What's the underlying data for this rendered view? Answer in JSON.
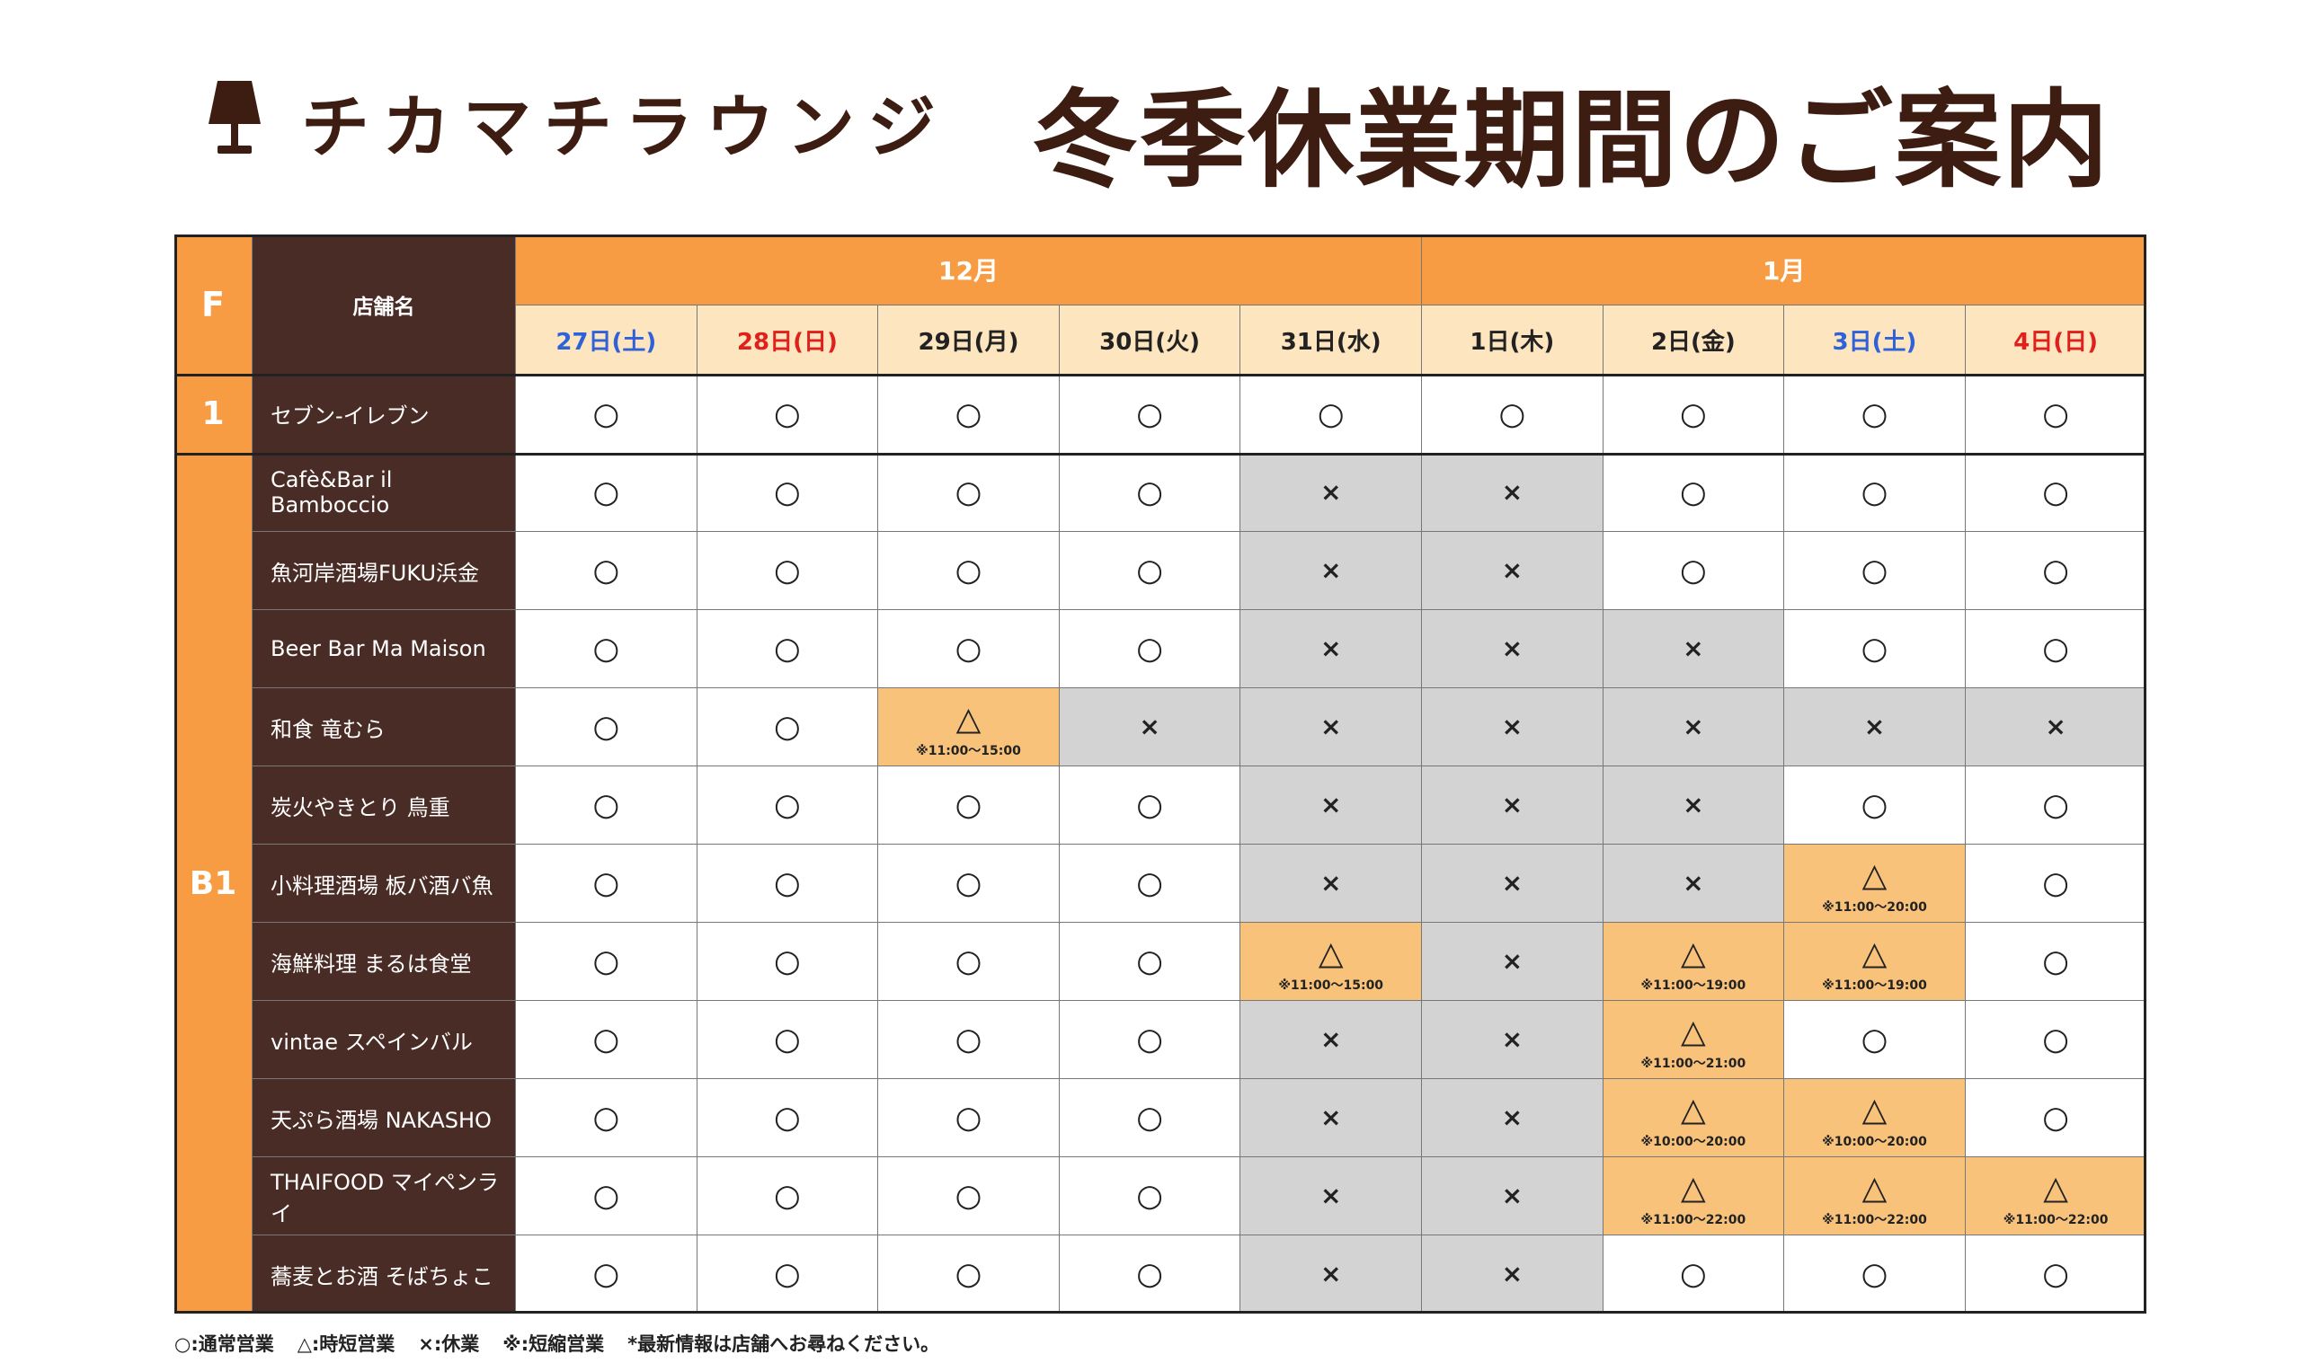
{
  "header": {
    "brand": "チカマチラウンジ",
    "title": "冬季休業期間のご案内"
  },
  "table": {
    "floor_header": "F",
    "name_header": "店舗名",
    "months": [
      {
        "label": "12月",
        "days": [
          {
            "label": "27日(土)",
            "color": "#2f62d8"
          },
          {
            "label": "28日(日)",
            "color": "#e0201b"
          },
          {
            "label": "29日(月)"
          },
          {
            "label": "30日(火)"
          },
          {
            "label": "31日(水)"
          }
        ]
      },
      {
        "label": "1月",
        "days": [
          {
            "label": "1日(木)"
          },
          {
            "label": "2日(金)"
          },
          {
            "label": "3日(土)",
            "color": "#2f62d8"
          },
          {
            "label": "4日(日)",
            "color": "#e0201b"
          }
        ]
      }
    ],
    "floors": [
      {
        "label": "1",
        "rows": [
          {
            "name": "セブン-イレブン",
            "cells": [
              "○",
              "○",
              "○",
              "○",
              "○",
              "○",
              "○",
              "○",
              "○"
            ]
          }
        ]
      },
      {
        "label": "B1",
        "rows": [
          {
            "name": "Cafè&Bar il Bamboccio",
            "cells": [
              "○",
              "○",
              "○",
              "○",
              "×",
              "×",
              "○",
              "○",
              "○"
            ]
          },
          {
            "name": "魚河岸酒場FUKU浜金",
            "cells": [
              "○",
              "○",
              "○",
              "○",
              "×",
              "×",
              "○",
              "○",
              "○"
            ]
          },
          {
            "name": "Beer Bar Ma Maison",
            "cells": [
              "○",
              "○",
              "○",
              "○",
              "×",
              "×",
              "×",
              "○",
              "○"
            ]
          },
          {
            "name": "和食 竜むら",
            "cells": [
              "○",
              "○",
              {
                "mark": "△",
                "note": "※11:00〜15:00"
              },
              "×",
              "×",
              "×",
              "×",
              "×",
              "×"
            ]
          },
          {
            "name": "炭火やきとり 鳥重",
            "cells": [
              "○",
              "○",
              "○",
              "○",
              "×",
              "×",
              "×",
              "○",
              "○"
            ]
          },
          {
            "name": "小料理酒場 板バ酒バ魚",
            "cells": [
              "○",
              "○",
              "○",
              "○",
              "×",
              "×",
              "×",
              {
                "mark": "△",
                "note": "※11:00〜20:00"
              },
              "○"
            ]
          },
          {
            "name": "海鮮料理 まるは食堂",
            "cells": [
              "○",
              "○",
              "○",
              "○",
              {
                "mark": "△",
                "note": "※11:00〜15:00"
              },
              "×",
              {
                "mark": "△",
                "note": "※11:00〜19:00"
              },
              {
                "mark": "△",
                "note": "※11:00〜19:00"
              },
              "○"
            ]
          },
          {
            "name": "vintae スペインバル",
            "cells": [
              "○",
              "○",
              "○",
              "○",
              "×",
              "×",
              {
                "mark": "△",
                "note": "※11:00〜21:00"
              },
              "○",
              "○"
            ]
          },
          {
            "name": "天ぷら酒場 NAKASHO",
            "cells": [
              "○",
              "○",
              "○",
              "○",
              "×",
              "×",
              {
                "mark": "△",
                "note": "※10:00〜20:00"
              },
              {
                "mark": "△",
                "note": "※10:00〜20:00"
              },
              "○"
            ]
          },
          {
            "name": "THAIFOOD マイペンライ",
            "cells": [
              "○",
              "○",
              "○",
              "○",
              "×",
              "×",
              {
                "mark": "△",
                "note": "※11:00〜22:00"
              },
              {
                "mark": "△",
                "note": "※11:00〜22:00"
              },
              {
                "mark": "△",
                "note": "※11:00〜22:00"
              }
            ]
          },
          {
            "name": "蕎麦とお酒 そばちょこ",
            "cells": [
              "○",
              "○",
              "○",
              "○",
              "×",
              "×",
              "○",
              "○",
              "○"
            ]
          }
        ]
      }
    ]
  },
  "legend": [
    "○:通常営業",
    "△:時短営業",
    "×:休業",
    "※:短縮営業",
    "*最新情報は店舗へお尋ねください。"
  ]
}
